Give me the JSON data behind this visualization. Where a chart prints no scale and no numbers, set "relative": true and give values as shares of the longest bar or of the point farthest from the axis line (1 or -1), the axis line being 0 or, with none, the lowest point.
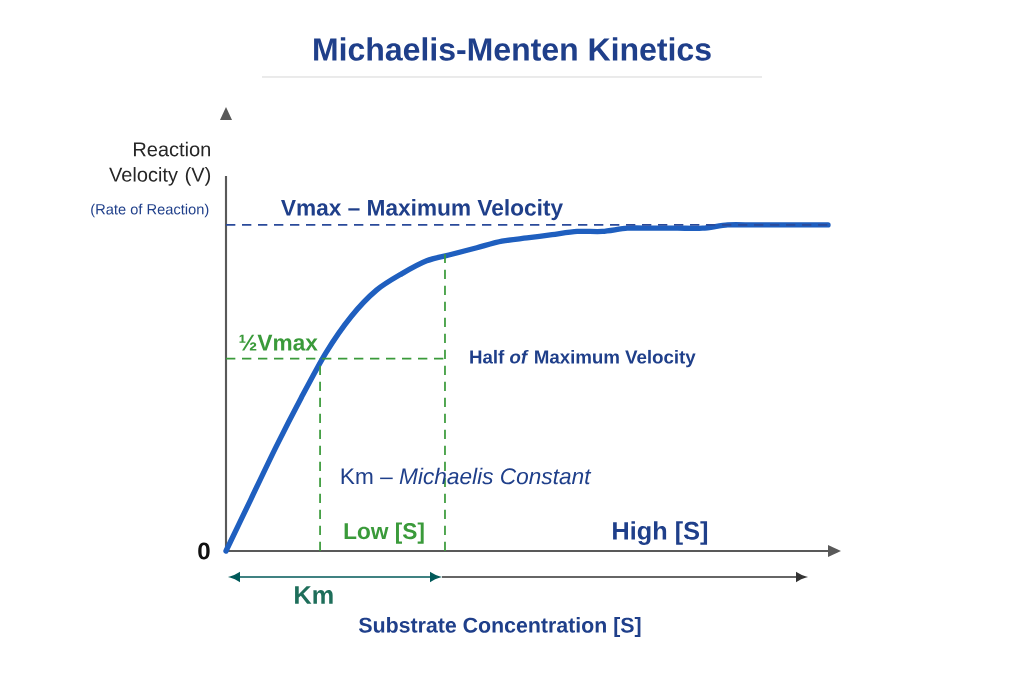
{
  "chart_data": {
    "type": "line",
    "title": "Michaelis-Menten Kinetics",
    "xlabel": "Substrate Concentration [S]",
    "ylabel": "Reaction Velocity (V)",
    "relative": true,
    "categories": [
      null,
      null,
      null,
      null,
      null,
      null,
      null,
      null,
      null,
      null,
      null,
      null,
      null,
      null,
      null,
      null,
      null,
      null,
      null,
      null,
      null,
      null,
      null,
      null,
      null
    ],
    "series": [
      {
        "color": "#1f5fbf",
        "values": [
          0,
          0.16,
          0.32,
          0.47,
          0.61,
          0.72,
          0.8,
          0.85,
          0.89,
          0.91,
          0.93,
          0.95,
          0.96,
          0.97,
          0.98,
          0.98,
          0.99,
          0.99,
          0.99,
          0.99,
          1,
          1,
          1,
          1,
          1
        ]
      }
    ],
    "ref_lines": [
      {
        "axis": "y",
        "value": 1,
        "label": "Vmax – Maximum Velocity",
        "color": "#2a4a9a",
        "line_style": "dashed"
      },
      {
        "axis": "y",
        "value": 0.59,
        "label": "Half *of* Maximum Velocity",
        "color": "#3a9a3a",
        "line_style": "dashed"
      }
    ],
    "annotations": [
      "(Rate of Reaction)",
      "½Vmax",
      "0",
      "Low [S]",
      "High [S]",
      "Km",
      "Km – *Michaelis Constant*"
    ]
  }
}
